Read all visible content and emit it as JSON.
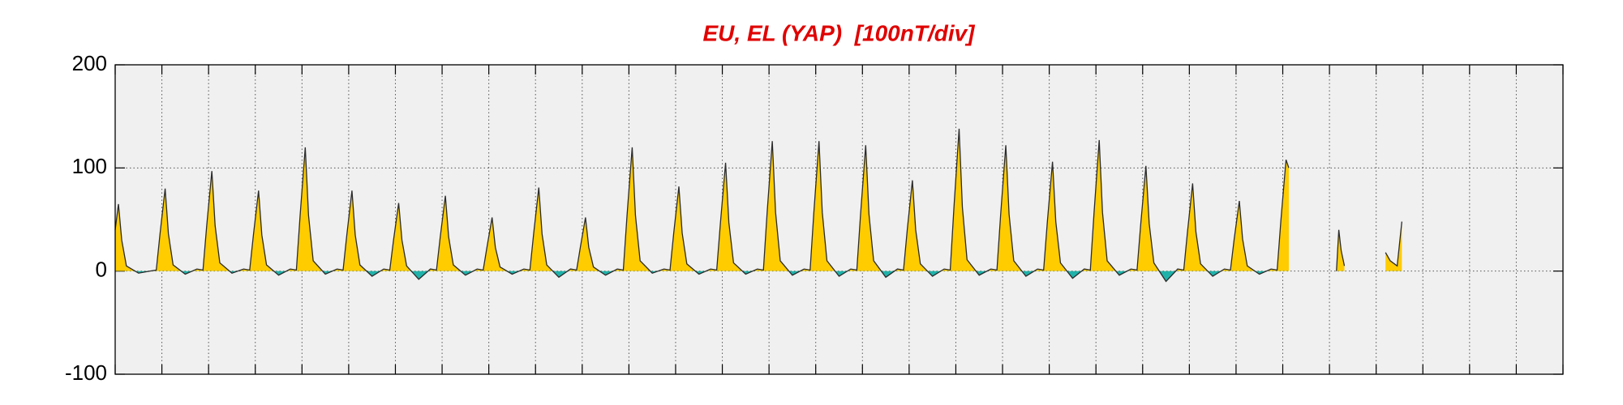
{
  "chart_data": {
    "type": "area",
    "title": "EU, EL (YAP)  [100nT/div]",
    "line_color": "#2b2b2b",
    "fill_color": "#ffcc00",
    "negative_fill_color": "#20b2aa",
    "xlim": [
      0,
      31
    ],
    "xticks": [
      0,
      1,
      2,
      3,
      4,
      5,
      6,
      7,
      8,
      9,
      10,
      11,
      12,
      13,
      14,
      15,
      16,
      17,
      18,
      19,
      20,
      21,
      22,
      23,
      24,
      25,
      26,
      27,
      28,
      29,
      30,
      31
    ],
    "ylim": [
      -100,
      200
    ],
    "yticks": [
      -100,
      0,
      100,
      200
    ],
    "grid": true,
    "x": [
      0,
      0.07,
      0.14,
      0.24,
      0.5,
      0.75,
      0.88,
      0.96,
      1.07,
      1.14,
      1.24,
      1.5,
      1.75,
      1.88,
      1.96,
      2.07,
      2.14,
      2.24,
      2.5,
      2.75,
      2.88,
      2.96,
      3.07,
      3.14,
      3.24,
      3.5,
      3.75,
      3.88,
      3.96,
      4.07,
      4.14,
      4.24,
      4.5,
      4.75,
      4.88,
      4.96,
      5.07,
      5.14,
      5.24,
      5.5,
      5.75,
      5.88,
      5.96,
      6.07,
      6.14,
      6.24,
      6.5,
      6.75,
      6.88,
      6.96,
      7.07,
      7.14,
      7.24,
      7.5,
      7.75,
      7.88,
      7.96,
      8.07,
      8.14,
      8.24,
      8.5,
      8.75,
      8.88,
      8.96,
      9.07,
      9.14,
      9.24,
      9.5,
      9.75,
      9.88,
      9.96,
      10.07,
      10.14,
      10.24,
      10.5,
      10.75,
      10.88,
      10.96,
      11.07,
      11.14,
      11.24,
      11.5,
      11.75,
      11.88,
      11.96,
      12.07,
      12.14,
      12.24,
      12.5,
      12.75,
      12.88,
      12.96,
      13.07,
      13.14,
      13.24,
      13.5,
      13.75,
      13.88,
      13.96,
      14.07,
      14.14,
      14.24,
      14.5,
      14.75,
      14.88,
      14.96,
      15.07,
      15.14,
      15.24,
      15.5,
      15.75,
      15.88,
      15.96,
      16.07,
      16.14,
      16.24,
      16.5,
      16.75,
      16.88,
      16.96,
      17.07,
      17.14,
      17.24,
      17.5,
      17.75,
      17.88,
      17.96,
      18.07,
      18.14,
      18.24,
      18.5,
      18.75,
      18.88,
      18.96,
      19.07,
      19.14,
      19.24,
      19.5,
      19.75,
      19.88,
      19.96,
      20.07,
      20.14,
      20.24,
      20.5,
      20.75,
      20.88,
      20.96,
      21.07,
      21.14,
      21.24,
      21.5,
      21.75,
      21.88,
      21.96,
      22.07,
      22.14,
      22.24,
      22.5,
      22.75,
      22.88,
      22.96,
      23.07,
      23.14,
      23.24,
      23.5,
      23.75,
      23.88,
      23.96,
      24.07,
      24.14,
      24.24,
      24.5,
      24.75,
      24.88,
      24.96,
      25.07,
      25.13,
      25.5,
      26.15,
      26.2,
      26.25,
      26.32,
      26.6,
      27.2,
      27.3,
      27.45,
      27.55
    ],
    "values": [
      40,
      65,
      30,
      5,
      -2,
      0,
      1,
      36,
      80,
      36,
      6,
      -3,
      2,
      1,
      44,
      97,
      44,
      8,
      -2,
      2,
      1,
      35,
      78,
      35,
      6,
      -4,
      2,
      1,
      54,
      120,
      54,
      10,
      -3,
      2,
      1,
      35,
      78,
      35,
      6,
      -5,
      2,
      1,
      30,
      66,
      30,
      5,
      -8,
      2,
      1,
      33,
      73,
      33,
      6,
      -4,
      2,
      1,
      23,
      52,
      23,
      4,
      -3,
      2,
      1,
      36,
      81,
      36,
      6,
      -6,
      2,
      1,
      23,
      52,
      23,
      4,
      -4,
      2,
      1,
      54,
      120,
      54,
      10,
      -2,
      2,
      1,
      37,
      82,
      37,
      7,
      -3,
      2,
      1,
      47,
      105,
      47,
      8,
      -3,
      2,
      1,
      57,
      126,
      57,
      10,
      -4,
      2,
      1,
      57,
      126,
      57,
      10,
      -5,
      2,
      1,
      55,
      122,
      55,
      10,
      -6,
      2,
      1,
      40,
      88,
      40,
      7,
      -5,
      2,
      1,
      62,
      138,
      62,
      11,
      -4,
      2,
      1,
      55,
      122,
      55,
      10,
      -5,
      2,
      1,
      48,
      106,
      48,
      8,
      -7,
      2,
      1,
      57,
      127,
      57,
      10,
      -4,
      2,
      1,
      46,
      102,
      46,
      8,
      -10,
      2,
      1,
      38,
      85,
      38,
      7,
      -5,
      2,
      1,
      31,
      68,
      31,
      5,
      -3,
      2,
      1,
      49,
      108,
      100,
      null,
      0,
      40,
      20,
      5,
      null,
      18,
      10,
      5,
      48
    ]
  }
}
